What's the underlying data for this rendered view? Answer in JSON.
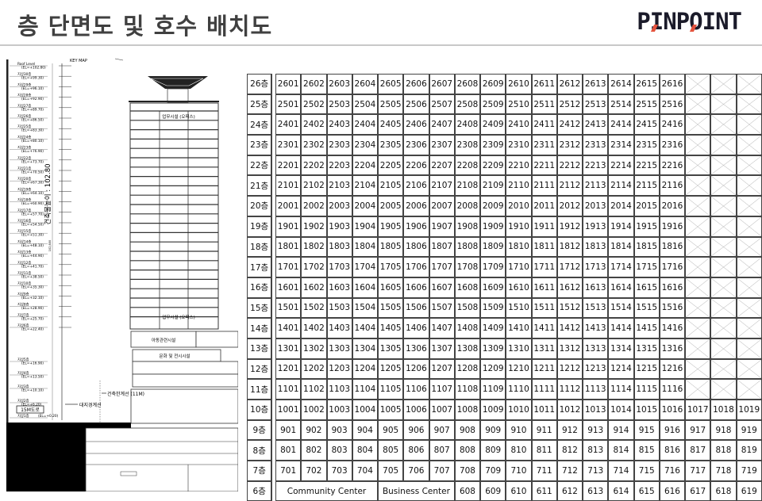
{
  "header": {
    "title": "층 단면도 및 호수 배치도",
    "logo": "PINPOINT",
    "logo_accent_color": "#e5533d"
  },
  "section": {
    "key_map": "KEY MAP",
    "height_label": "건축물높이 : 102.80",
    "dimension_label": "102,800",
    "levels": [
      {
        "name": "Roof Level",
        "el": "(EL=+102.80)"
      },
      {
        "name": "지상30층",
        "el": "(EL=+99.30)"
      },
      {
        "name": "지상29층",
        "el": "(EL=+96.10)"
      },
      {
        "name": "지상28층",
        "el": "(EL=+92.90)"
      },
      {
        "name": "지상27층",
        "el": "(EL=+89.70)"
      },
      {
        "name": "지상26층",
        "el": "(EL=+86.50)"
      },
      {
        "name": "지상25층",
        "el": "(EL=+83.30)"
      },
      {
        "name": "지상24층",
        "el": "(EL=+80.10)"
      },
      {
        "name": "지상23층",
        "el": "(EL=+76.90)"
      },
      {
        "name": "지상22층",
        "el": "(EL=+73.70)"
      },
      {
        "name": "지상21층",
        "el": "(EL=+70.50)"
      },
      {
        "name": "지상20층",
        "el": "(EL=+67.30)"
      },
      {
        "name": "지상19층",
        "el": "(EL=+64.10)"
      },
      {
        "name": "지상18층",
        "el": "(EL=+60.90)"
      },
      {
        "name": "지상17층",
        "el": "(EL=+57.70)"
      },
      {
        "name": "지상16층",
        "el": "(EL=+54.50)"
      },
      {
        "name": "지상15층",
        "el": "(EL=+51.30)"
      },
      {
        "name": "지상14층",
        "el": "(EL=+48.10)"
      },
      {
        "name": "지상13층",
        "el": "(EL=+44.90)"
      },
      {
        "name": "지상12층",
        "el": "(EL=+41.70)"
      },
      {
        "name": "지상11층",
        "el": "(EL=+38.50)"
      },
      {
        "name": "지상10층",
        "el": "(EL=+35.30)"
      },
      {
        "name": "지상9층",
        "el": "(EL=+32.10)"
      },
      {
        "name": "지상8층",
        "el": "(EL=+28.90)"
      },
      {
        "name": "지상7층",
        "el": "(EL=+25.70)"
      },
      {
        "name": "지상6층",
        "el": "(EL=+22.40)"
      },
      {
        "name": "지상5층",
        "el": "(EL=+16.90)"
      },
      {
        "name": "지상4층",
        "el": "(EL=+13.50)"
      },
      {
        "name": "지상3층",
        "el": "(EL=+10.10)"
      },
      {
        "name": "지상2층",
        "el": "(EL=+6.20)"
      },
      {
        "name": "지상1층",
        "el": "(EL=+0.20)"
      }
    ],
    "road_label": "15M도로",
    "office_label": "업무시설 (오피스)",
    "child_label": "아동관련시설",
    "culture_label": "문화 및 전시시설",
    "building_line_label": "건축한계선 (11M)",
    "boundary_label": "대지경계선"
  },
  "table": {
    "rows": [
      {
        "floor": "26층",
        "cells": [
          "2601",
          "2602",
          "2603",
          "2604",
          "2605",
          "2606",
          "2607",
          "2608",
          "2609",
          "2610",
          "2611",
          "2612",
          "2613",
          "2614",
          "2615",
          "2616",
          null,
          null,
          null
        ]
      },
      {
        "floor": "25층",
        "cells": [
          "2501",
          "2502",
          "2503",
          "2504",
          "2505",
          "2506",
          "2507",
          "2508",
          "2509",
          "2510",
          "2511",
          "2512",
          "2513",
          "2514",
          "2515",
          "2516",
          null,
          null,
          null
        ]
      },
      {
        "floor": "24층",
        "cells": [
          "2401",
          "2402",
          "2403",
          "2404",
          "2405",
          "2406",
          "2407",
          "2408",
          "2409",
          "2410",
          "2411",
          "2412",
          "2413",
          "2414",
          "2415",
          "2416",
          null,
          null,
          null
        ]
      },
      {
        "floor": "23층",
        "cells": [
          "2301",
          "2302",
          "2303",
          "2304",
          "2305",
          "2306",
          "2307",
          "2308",
          "2309",
          "2310",
          "2311",
          "2312",
          "2313",
          "2314",
          "2315",
          "2316",
          null,
          null,
          null
        ]
      },
      {
        "floor": "22층",
        "cells": [
          "2201",
          "2202",
          "2203",
          "2204",
          "2205",
          "2206",
          "2207",
          "2208",
          "2209",
          "2210",
          "2211",
          "2212",
          "2213",
          "2214",
          "2215",
          "2216",
          null,
          null,
          null
        ]
      },
      {
        "floor": "21층",
        "cells": [
          "2101",
          "2102",
          "2103",
          "2104",
          "2105",
          "2106",
          "2107",
          "2108",
          "2109",
          "2110",
          "2111",
          "2112",
          "2113",
          "2114",
          "2115",
          "2116",
          null,
          null,
          null
        ]
      },
      {
        "floor": "20층",
        "cells": [
          "2001",
          "2002",
          "2003",
          "2004",
          "2005",
          "2006",
          "2007",
          "2008",
          "2009",
          "2010",
          "2011",
          "2012",
          "2013",
          "2014",
          "2015",
          "2016",
          null,
          null,
          null
        ]
      },
      {
        "floor": "19층",
        "cells": [
          "1901",
          "1902",
          "1903",
          "1904",
          "1905",
          "1906",
          "1907",
          "1908",
          "1909",
          "1910",
          "1911",
          "1912",
          "1913",
          "1914",
          "1915",
          "1916",
          null,
          null,
          null
        ]
      },
      {
        "floor": "18층",
        "cells": [
          "1801",
          "1802",
          "1803",
          "1804",
          "1805",
          "1806",
          "1807",
          "1808",
          "1809",
          "1810",
          "1811",
          "1812",
          "1813",
          "1814",
          "1815",
          "1816",
          null,
          null,
          null
        ]
      },
      {
        "floor": "17층",
        "cells": [
          "1701",
          "1702",
          "1703",
          "1704",
          "1705",
          "1706",
          "1707",
          "1708",
          "1709",
          "1710",
          "1711",
          "1712",
          "1713",
          "1714",
          "1715",
          "1716",
          null,
          null,
          null
        ]
      },
      {
        "floor": "16층",
        "cells": [
          "1601",
          "1602",
          "1603",
          "1604",
          "1605",
          "1606",
          "1607",
          "1608",
          "1609",
          "1610",
          "1611",
          "1612",
          "1613",
          "1614",
          "1615",
          "1616",
          null,
          null,
          null
        ]
      },
      {
        "floor": "15층",
        "cells": [
          "1501",
          "1502",
          "1503",
          "1504",
          "1505",
          "1506",
          "1507",
          "1508",
          "1509",
          "1510",
          "1511",
          "1512",
          "1513",
          "1514",
          "1515",
          "1516",
          null,
          null,
          null
        ]
      },
      {
        "floor": "14층",
        "cells": [
          "1401",
          "1402",
          "1403",
          "1404",
          "1405",
          "1406",
          "1407",
          "1408",
          "1409",
          "1410",
          "1411",
          "1412",
          "1413",
          "1414",
          "1415",
          "1416",
          null,
          null,
          null
        ]
      },
      {
        "floor": "13층",
        "cells": [
          "1301",
          "1302",
          "1303",
          "1304",
          "1305",
          "1306",
          "1307",
          "1308",
          "1309",
          "1310",
          "1311",
          "1312",
          "1313",
          "1314",
          "1315",
          "1316",
          null,
          null,
          null
        ]
      },
      {
        "floor": "12층",
        "cells": [
          "1201",
          "1202",
          "1203",
          "1204",
          "1205",
          "1206",
          "1207",
          "1208",
          "1209",
          "1210",
          "1211",
          "1212",
          "1213",
          "1214",
          "1215",
          "1216",
          null,
          null,
          null
        ]
      },
      {
        "floor": "11층",
        "cells": [
          "1101",
          "1102",
          "1103",
          "1104",
          "1105",
          "1106",
          "1107",
          "1108",
          "1109",
          "1110",
          "1111",
          "1112",
          "1113",
          "1114",
          "1115",
          "1116",
          null,
          null,
          null
        ]
      },
      {
        "floor": "10층",
        "cells": [
          "1001",
          "1002",
          "1003",
          "1004",
          "1005",
          "1006",
          "1007",
          "1008",
          "1009",
          "1010",
          "1011",
          "1012",
          "1013",
          "1014",
          "1015",
          "1016",
          "1017",
          "1018",
          "1019"
        ]
      },
      {
        "floor": "9층",
        "cells": [
          "901",
          "902",
          "903",
          "904",
          "905",
          "906",
          "907",
          "908",
          "909",
          "910",
          "911",
          "912",
          "913",
          "914",
          "915",
          "916",
          "917",
          "918",
          "919"
        ]
      },
      {
        "floor": "8층",
        "cells": [
          "801",
          "802",
          "803",
          "804",
          "805",
          "806",
          "807",
          "808",
          "809",
          "810",
          "811",
          "812",
          "813",
          "814",
          "815",
          "816",
          "817",
          "818",
          "819"
        ]
      },
      {
        "floor": "7층",
        "cells": [
          "701",
          "702",
          "703",
          "704",
          "705",
          "706",
          "707",
          "708",
          "709",
          "710",
          "711",
          "712",
          "713",
          "714",
          "715",
          "716",
          "717",
          "718",
          "719"
        ]
      },
      {
        "floor": "6층",
        "cells": [
          {
            "text": "Community Center",
            "span": 4
          },
          {
            "text": "Business Center",
            "span": 3
          },
          "608",
          "609",
          "610",
          "611",
          "612",
          "613",
          "614",
          "615",
          "616",
          "617",
          "618",
          "619"
        ]
      }
    ]
  }
}
